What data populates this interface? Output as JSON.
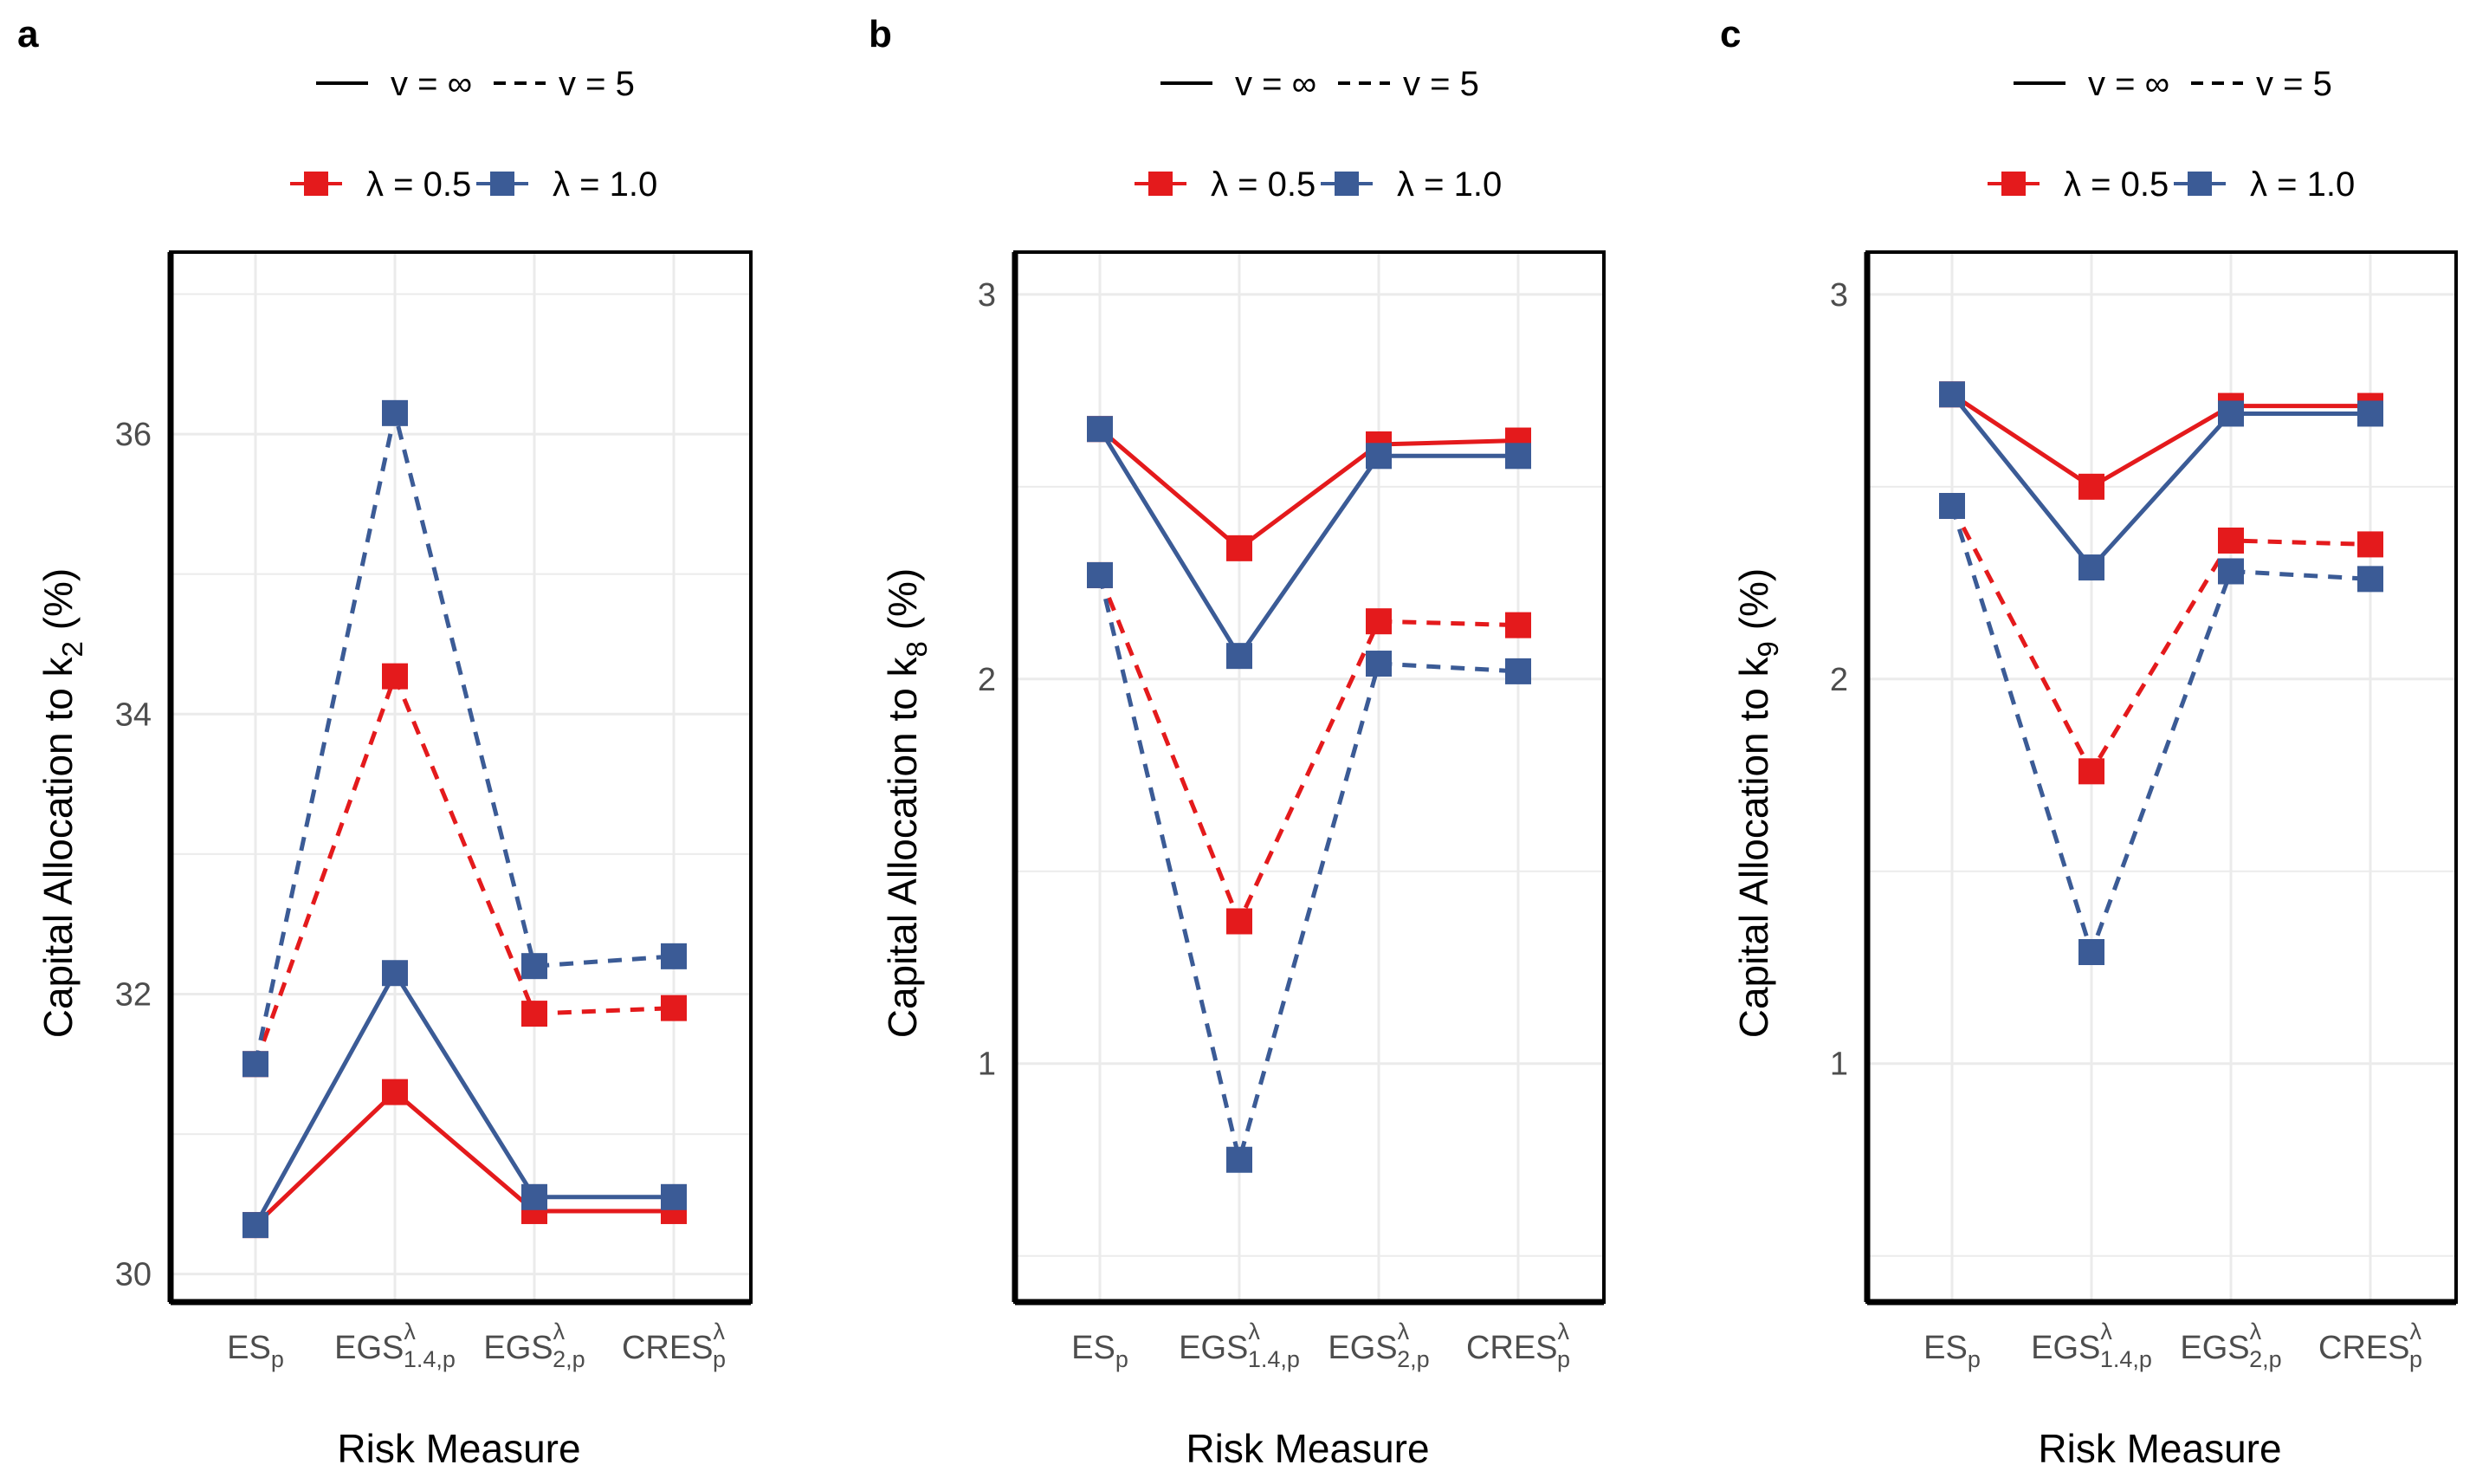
{
  "chart_data": [
    {
      "type": "line",
      "panel": "a",
      "ylabel_prefix": "Capital Allocation to  k",
      "ylabel_sub": "2",
      "ylabel_suffix": "  (%)",
      "xlabel": "Risk Measure",
      "ylim": [
        29.8,
        37.3
      ],
      "yticks": [
        30,
        32,
        34,
        36
      ],
      "ytick_labels": [
        "30",
        "32",
        "34",
        "36"
      ],
      "grid": true,
      "series": [
        {
          "name": "λ = 0.5, v = ∞",
          "color": "#e41a1c",
          "dash": false,
          "values": [
            30.35,
            31.3,
            30.45,
            30.45
          ]
        },
        {
          "name": "λ = 1.0, v = ∞",
          "color": "#3b5b96",
          "dash": false,
          "values": [
            30.35,
            32.15,
            30.55,
            30.55
          ]
        },
        {
          "name": "λ = 0.5, v = 5",
          "color": "#e41a1c",
          "dash": true,
          "values": [
            31.5,
            34.27,
            31.86,
            31.9
          ]
        },
        {
          "name": "λ = 1.0, v = 5",
          "color": "#3b5b96",
          "dash": true,
          "values": [
            31.5,
            36.15,
            32.2,
            32.27
          ]
        }
      ]
    },
    {
      "type": "line",
      "panel": "b",
      "ylabel_prefix": "Capital Allocation to  k",
      "ylabel_sub": "8",
      "ylabel_suffix": "  (%)",
      "xlabel": "Risk Measure",
      "ylim": [
        0.38,
        3.11
      ],
      "yticks": [
        1,
        2,
        3
      ],
      "ytick_labels": [
        "1",
        "2",
        "3"
      ],
      "grid": true,
      "series": [
        {
          "name": "λ = 0.5, v = ∞",
          "color": "#e41a1c",
          "dash": false,
          "values": [
            2.65,
            2.34,
            2.61,
            2.62
          ]
        },
        {
          "name": "λ = 1.0, v = ∞",
          "color": "#3b5b96",
          "dash": false,
          "values": [
            2.65,
            2.06,
            2.58,
            2.58
          ]
        },
        {
          "name": "λ = 0.5, v = 5",
          "color": "#e41a1c",
          "dash": true,
          "values": [
            2.27,
            1.37,
            2.15,
            2.14
          ]
        },
        {
          "name": "λ = 1.0, v = 5",
          "color": "#3b5b96",
          "dash": true,
          "values": [
            2.27,
            0.75,
            2.04,
            2.02
          ]
        }
      ]
    },
    {
      "type": "line",
      "panel": "c",
      "ylabel_prefix": "Capital Allocation to  k",
      "ylabel_sub": "9",
      "ylabel_suffix": "  (%)",
      "xlabel": "Risk Measure",
      "ylim": [
        0.38,
        3.11
      ],
      "yticks": [
        1,
        2,
        3
      ],
      "ytick_labels": [
        "1",
        "2",
        "3"
      ],
      "grid": true,
      "series": [
        {
          "name": "λ = 0.5, v = ∞",
          "color": "#e41a1c",
          "dash": false,
          "values": [
            2.74,
            2.5,
            2.71,
            2.71
          ]
        },
        {
          "name": "λ = 1.0, v = ∞",
          "color": "#3b5b96",
          "dash": false,
          "values": [
            2.74,
            2.29,
            2.69,
            2.69
          ]
        },
        {
          "name": "λ = 0.5, v = 5",
          "color": "#e41a1c",
          "dash": true,
          "values": [
            2.45,
            1.76,
            2.36,
            2.35
          ]
        },
        {
          "name": "λ = 1.0, v = 5",
          "color": "#3b5b96",
          "dash": true,
          "values": [
            2.45,
            1.29,
            2.28,
            2.26
          ]
        }
      ]
    }
  ],
  "categories": [
    {
      "base": "ES",
      "sup": "",
      "sub": "p"
    },
    {
      "base": "EGS",
      "sup": "λ",
      "sub": "1.4,p"
    },
    {
      "base": "EGS",
      "sup": "λ",
      "sub": "2,p"
    },
    {
      "base": "CRES",
      "sup": "λ",
      "sub": "p"
    }
  ],
  "legend": {
    "linetype": [
      {
        "label": "v = ∞",
        "dash": false
      },
      {
        "label": "v = 5",
        "dash": true
      }
    ],
    "colour": [
      {
        "label": "λ = 0.5",
        "color": "#e41a1c"
      },
      {
        "label": "λ = 1.0",
        "color": "#3b5b96"
      }
    ]
  },
  "colors": {
    "red": "#e41a1c",
    "blue": "#3b5b96",
    "grid": "#ebebeb",
    "tick_text": "#4d4d4d"
  }
}
